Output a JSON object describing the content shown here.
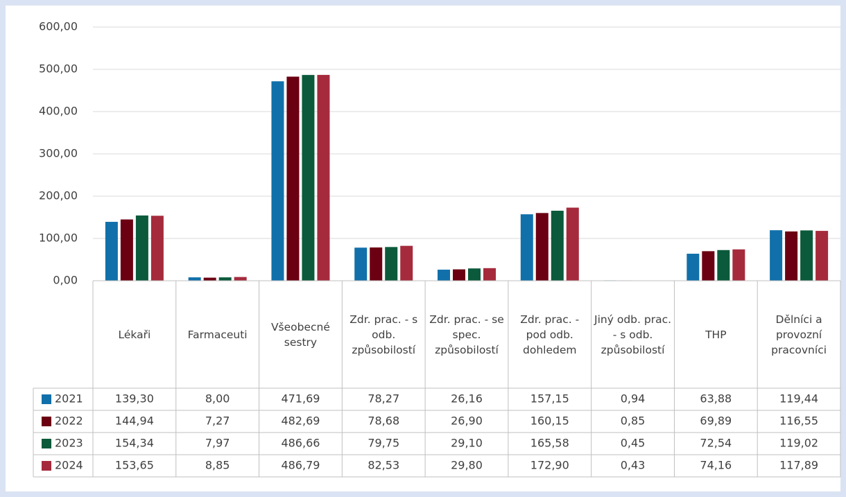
{
  "chart_data": {
    "type": "bar",
    "categories": [
      "Lékaři",
      "Farmaceuti",
      "Všeobecné sestry",
      "Zdr. prac. - s odb. způsobilostí",
      "Zdr. prac. - se spec. způsobilostí",
      "Zdr. prac. - pod odb. dohledem",
      "Jiný odb. prac. - s odb. způsobilostí",
      "THP",
      "Dělníci a provozní pracovníci"
    ],
    "series": [
      {
        "name": "2021",
        "color": "#1170aa",
        "values": [
          139.3,
          8.0,
          471.69,
          78.27,
          26.16,
          157.15,
          0.94,
          63.88,
          119.44
        ],
        "value_labels": [
          "139,30",
          "8,00",
          "471,69",
          "78,27",
          "26,16",
          "157,15",
          "0,94",
          "63,88",
          "119,44"
        ]
      },
      {
        "name": "2022",
        "color": "#6b0012",
        "values": [
          144.94,
          7.27,
          482.69,
          78.68,
          26.9,
          160.15,
          0.85,
          69.89,
          116.55
        ],
        "value_labels": [
          "144,94",
          "7,27",
          "482,69",
          "78,68",
          "26,90",
          "160,15",
          "0,85",
          "69,89",
          "116,55"
        ]
      },
      {
        "name": "2023",
        "color": "#0b5a3b",
        "values": [
          154.34,
          7.97,
          486.66,
          79.75,
          29.1,
          165.58,
          0.45,
          72.54,
          119.02
        ],
        "value_labels": [
          "154,34",
          "7,97",
          "486,66",
          "79,75",
          "29,10",
          "165,58",
          "0,45",
          "72,54",
          "119,02"
        ]
      },
      {
        "name": "2024",
        "color": "#a52b3c",
        "values": [
          153.65,
          8.85,
          486.79,
          82.53,
          29.8,
          172.9,
          0.43,
          74.16,
          117.89
        ],
        "value_labels": [
          "153,65",
          "8,85",
          "486,79",
          "82,53",
          "29,80",
          "172,90",
          "0,43",
          "74,16",
          "117,89"
        ]
      }
    ],
    "ylim": [
      0,
      600
    ],
    "yticks": [
      {
        "value": 0,
        "label": "0,00"
      },
      {
        "value": 100,
        "label": "100,00"
      },
      {
        "value": 200,
        "label": "200,00"
      },
      {
        "value": 300,
        "label": "300,00"
      },
      {
        "value": 400,
        "label": "400,00"
      },
      {
        "value": 500,
        "label": "500,00"
      },
      {
        "value": 600,
        "label": "600,00"
      }
    ],
    "grid": true
  }
}
